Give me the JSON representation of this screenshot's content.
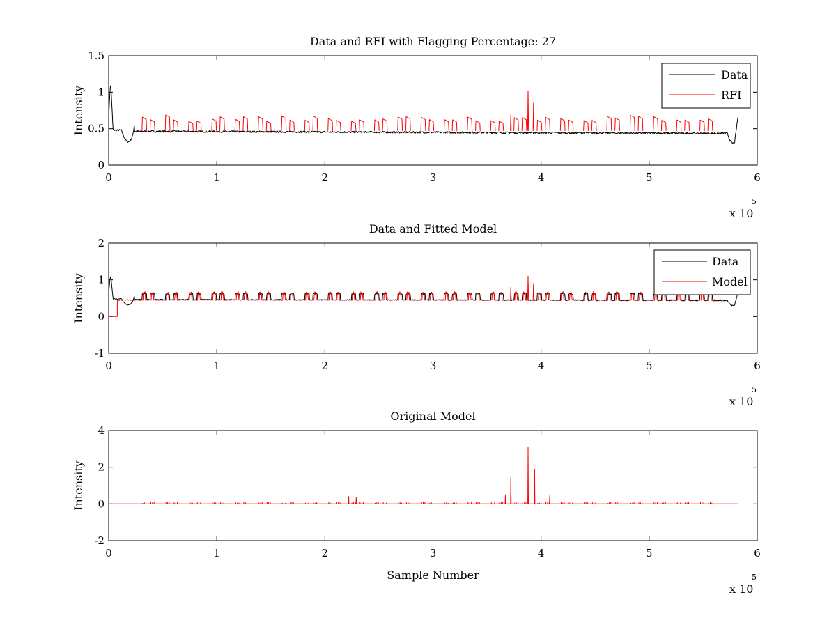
{
  "chart_data": [
    {
      "type": "line",
      "title": "Data and RFI with Flagging Percentage: 27",
      "xlabel": "",
      "ylabel": "Intensity",
      "xlim": [
        0,
        6
      ],
      "ylim": [
        0,
        1.5
      ],
      "xticks": [
        "0",
        "1",
        "2",
        "3",
        "4",
        "5",
        "6"
      ],
      "yticks": [
        "0",
        "0.5",
        "1",
        "1.5"
      ],
      "x_multiplier": {
        "base": "x 10",
        "exponent": "5"
      },
      "legend": {
        "position": "top-right",
        "entries": [
          {
            "label": "Data",
            "color": "#000000"
          },
          {
            "label": "RFI",
            "color": "#ff0000"
          }
        ]
      },
      "series": [
        {
          "name": "Data",
          "color": "#000000",
          "baseline": 0.47,
          "x_range": [
            0,
            5.82
          ]
        },
        {
          "name": "RFI",
          "color": "#ff0000",
          "x_range": [
            0.3,
            5.7
          ],
          "peaks": [
            [
              3.88,
              1.02
            ],
            [
              3.93,
              0.85
            ],
            [
              3.72,
              0.7
            ]
          ]
        }
      ]
    },
    {
      "type": "line",
      "title": "Data and Fitted Model",
      "xlabel": "",
      "ylabel": "Intensity",
      "xlim": [
        0,
        6
      ],
      "ylim": [
        -1,
        2
      ],
      "xticks": [
        "0",
        "1",
        "2",
        "3",
        "4",
        "5",
        "6"
      ],
      "yticks": [
        "-1",
        "0",
        "1",
        "2"
      ],
      "x_multiplier": {
        "base": "x 10",
        "exponent": "5"
      },
      "legend": {
        "position": "top-right",
        "entries": [
          {
            "label": "Data",
            "color": "#000000"
          },
          {
            "label": "Model",
            "color": "#ff0000"
          }
        ]
      },
      "series": [
        {
          "name": "Data",
          "color": "#000000",
          "baseline": 0.47,
          "x_range": [
            0,
            5.82
          ]
        },
        {
          "name": "Model",
          "color": "#ff0000",
          "baseline": 0.45,
          "x_range": [
            0,
            5.7
          ],
          "peaks": [
            [
              3.88,
              1.1
            ],
            [
              3.93,
              0.9
            ],
            [
              3.72,
              0.8
            ]
          ]
        }
      ]
    },
    {
      "type": "line",
      "title": "Original Model",
      "xlabel": "Sample Number",
      "ylabel": "Intensity",
      "xlim": [
        0,
        6
      ],
      "ylim": [
        -2,
        4
      ],
      "xticks": [
        "0",
        "1",
        "2",
        "3",
        "4",
        "5",
        "6"
      ],
      "yticks": [
        "-2",
        "0",
        "2",
        "4"
      ],
      "x_multiplier": {
        "base": "x 10",
        "exponent": "5"
      },
      "series": [
        {
          "color": "#ff0000",
          "baseline": 0,
          "x_range": [
            0,
            5.82
          ],
          "peaks": [
            [
              3.88,
              3.1
            ],
            [
              3.94,
              1.9
            ],
            [
              3.72,
              1.45
            ],
            [
              3.67,
              0.5
            ],
            [
              4.08,
              0.45
            ],
            [
              2.22,
              0.4
            ],
            [
              2.29,
              0.35
            ]
          ]
        }
      ]
    }
  ]
}
